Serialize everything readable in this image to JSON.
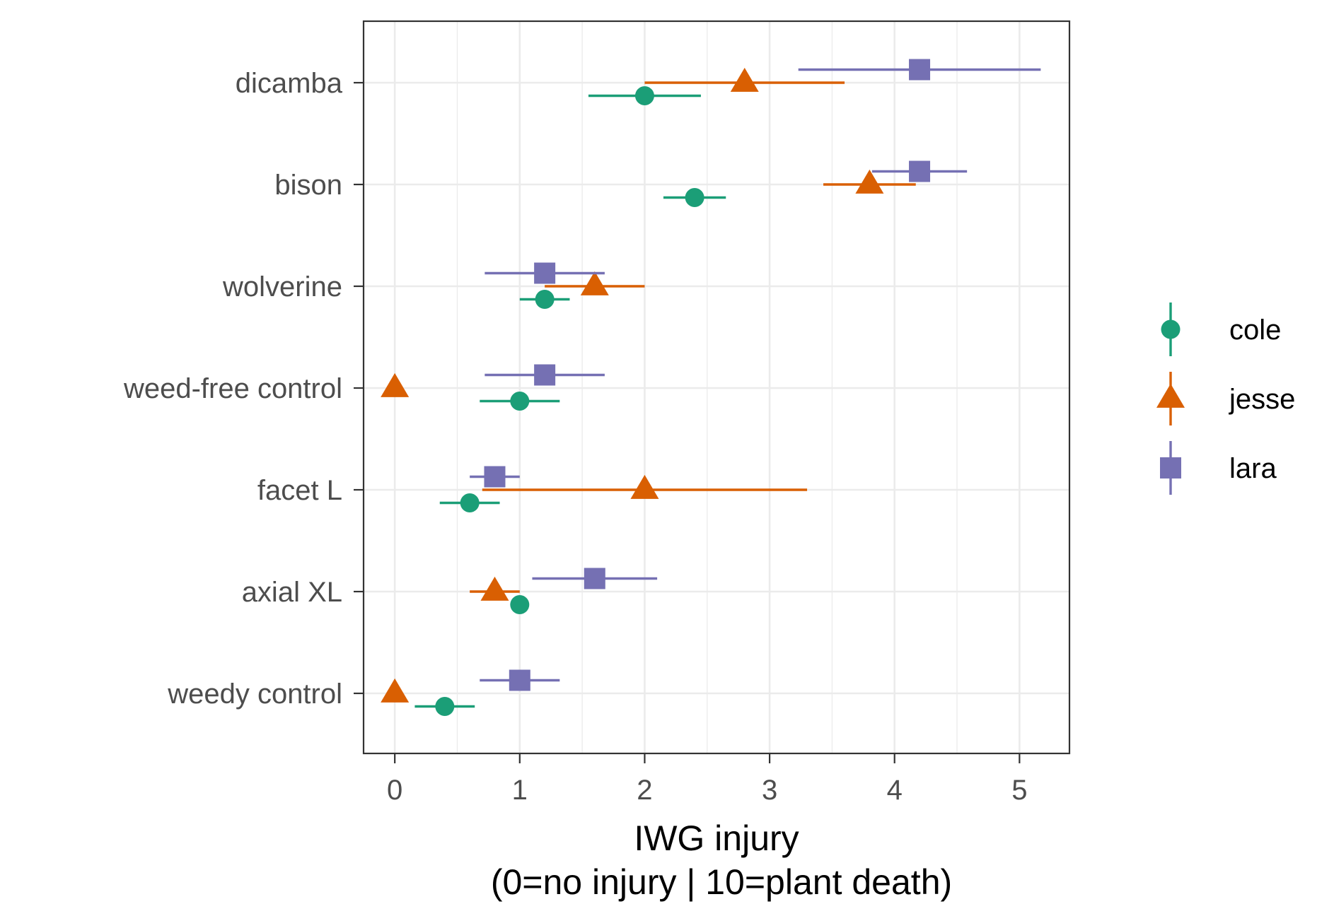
{
  "chart_data": {
    "type": "scatter",
    "subtype": "dot-and-whisker",
    "orientation": "horizontal",
    "categories": [
      "dicamba",
      "bison",
      "wolverine",
      "weed-free control",
      "facet L",
      "axial XL",
      "weedy control"
    ],
    "xlabel_lines": [
      "IWG injury",
      "(0=no injury | 10=plant death)"
    ],
    "ylabel": "",
    "xlim": [
      -0.25,
      5.4
    ],
    "x_ticks": [
      0,
      1,
      2,
      3,
      4,
      5
    ],
    "grid": true,
    "legend_position": "right",
    "series": [
      {
        "name": "cole",
        "color": "#1b9e77",
        "shape": "circle",
        "points": [
          {
            "category": "dicamba",
            "x": 2.0,
            "low": 1.55,
            "high": 2.45
          },
          {
            "category": "bison",
            "x": 2.4,
            "low": 2.15,
            "high": 2.65
          },
          {
            "category": "wolverine",
            "x": 1.2,
            "low": 1.0,
            "high": 1.4
          },
          {
            "category": "weed-free control",
            "x": 1.0,
            "low": 0.68,
            "high": 1.32
          },
          {
            "category": "facet L",
            "x": 0.6,
            "low": 0.36,
            "high": 0.84
          },
          {
            "category": "axial XL",
            "x": 1.0,
            "low": 1.0,
            "high": 1.0
          },
          {
            "category": "weedy control",
            "x": 0.4,
            "low": 0.16,
            "high": 0.64
          }
        ]
      },
      {
        "name": "jesse",
        "color": "#d95f02",
        "shape": "triangle",
        "points": [
          {
            "category": "dicamba",
            "x": 2.8,
            "low": 2.0,
            "high": 3.6
          },
          {
            "category": "bison",
            "x": 3.8,
            "low": 3.43,
            "high": 4.17
          },
          {
            "category": "wolverine",
            "x": 1.6,
            "low": 1.2,
            "high": 2.0
          },
          {
            "category": "weed-free control",
            "x": 0.0,
            "low": 0.0,
            "high": 0.0
          },
          {
            "category": "facet L",
            "x": 2.0,
            "low": 0.7,
            "high": 3.3
          },
          {
            "category": "axial XL",
            "x": 0.8,
            "low": 0.6,
            "high": 1.0
          },
          {
            "category": "weedy control",
            "x": 0.0,
            "low": 0.0,
            "high": 0.0
          }
        ]
      },
      {
        "name": "lara",
        "color": "#7570b3",
        "shape": "square",
        "points": [
          {
            "category": "dicamba",
            "x": 4.2,
            "low": 3.23,
            "high": 5.17
          },
          {
            "category": "bison",
            "x": 4.2,
            "low": 3.82,
            "high": 4.58
          },
          {
            "category": "wolverine",
            "x": 1.2,
            "low": 0.72,
            "high": 1.68
          },
          {
            "category": "weed-free control",
            "x": 1.2,
            "low": 0.72,
            "high": 1.68
          },
          {
            "category": "facet L",
            "x": 0.8,
            "low": 0.6,
            "high": 1.0
          },
          {
            "category": "axial XL",
            "x": 1.6,
            "low": 1.1,
            "high": 2.1
          },
          {
            "category": "weedy control",
            "x": 1.0,
            "low": 0.68,
            "high": 1.32
          }
        ]
      }
    ]
  }
}
